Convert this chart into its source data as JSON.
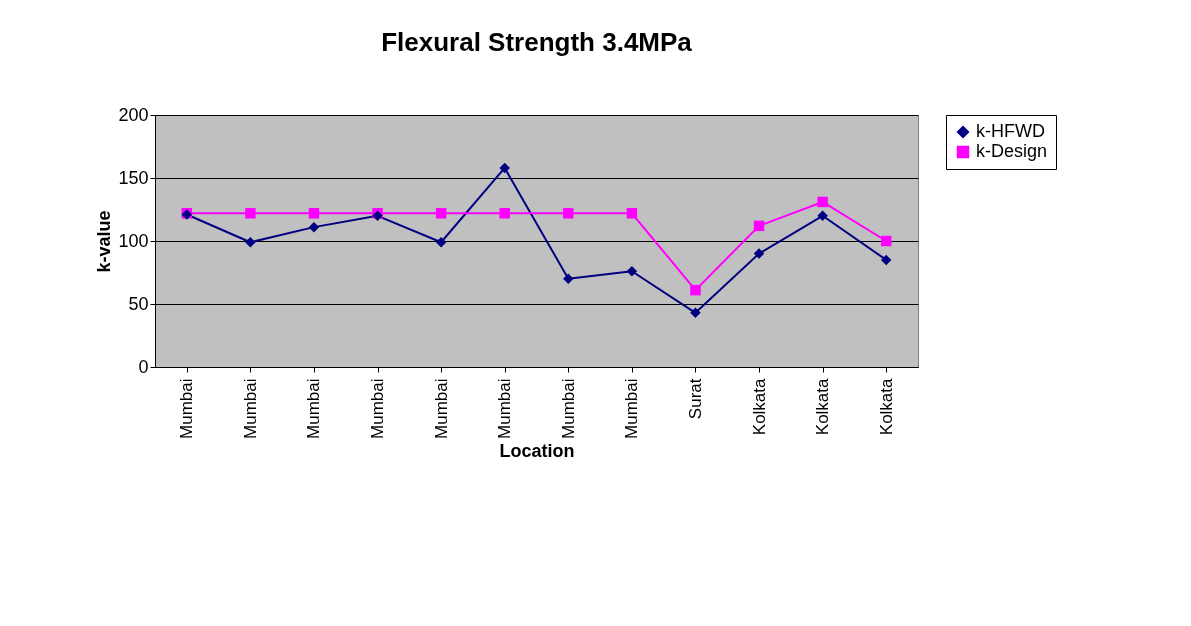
{
  "chart_data": {
    "type": "line",
    "title": "Flexural Strength 3.4MPa",
    "xlabel": "Location",
    "ylabel": "k-value",
    "categories": [
      "Mumbai",
      "Mumbai",
      "Mumbai",
      "Mumbai",
      "Mumbai",
      "Mumbai",
      "Mumbai",
      "Mumbai",
      "Surat",
      "Kolkata",
      "Kolkata",
      "Kolkata"
    ],
    "series": [
      {
        "name": "k-HFWD",
        "color": "#000080",
        "marker": "diamond",
        "values": [
          121,
          99,
          111,
          120,
          99,
          158,
          70,
          76,
          43,
          90,
          120,
          85
        ]
      },
      {
        "name": "k-Design",
        "color": "#ff00ff",
        "marker": "square",
        "values": [
          122,
          122,
          122,
          122,
          122,
          122,
          122,
          122,
          61,
          112,
          131,
          100
        ]
      }
    ],
    "ylim": [
      0,
      200
    ],
    "yticks": [
      0,
      50,
      100,
      150,
      200
    ],
    "grid": "y",
    "legend": "right",
    "line_style": "solid"
  }
}
